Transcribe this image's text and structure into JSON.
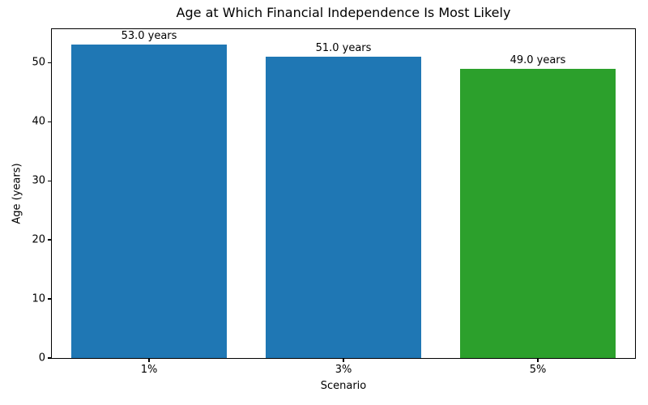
{
  "chart_data": {
    "type": "bar",
    "title": "Age at Which Financial Independence Is Most Likely",
    "xlabel": "Scenario",
    "ylabel": "Age (years)",
    "categories": [
      "1%",
      "3%",
      "5%"
    ],
    "values": [
      53.0,
      51.0,
      49.0
    ],
    "bar_labels": [
      "53.0 years",
      "51.0 years",
      "49.0 years"
    ],
    "bar_colors": [
      "#1f77b4",
      "#1f77b4",
      "#2ca02c"
    ],
    "ylim": [
      0,
      55.65
    ],
    "yticks": [
      0,
      10,
      20,
      30,
      40,
      50
    ],
    "bar_width_fraction": 0.8,
    "grid": false,
    "legend_position": "none",
    "axis_color": "#000000",
    "background_color": "#ffffff"
  }
}
